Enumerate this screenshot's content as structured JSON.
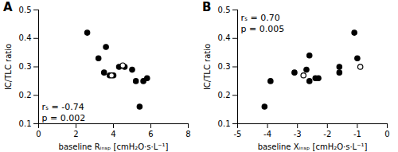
{
  "chart_data": [
    {
      "type": "scatter",
      "title": "A",
      "x_label": "baseline Rᵢₙₛₚ [cmH₂O·s·L⁻¹]",
      "y_label": "IC/TLC ratio",
      "xlim": [
        0,
        8
      ],
      "xticks": [
        0,
        2,
        4,
        6,
        8
      ],
      "ylim": [
        0.1,
        0.5
      ],
      "yticks": [
        0.1,
        0.2,
        0.3,
        0.4,
        0.5
      ],
      "series": [
        {
          "color": "#000000",
          "marker": "filled",
          "x": [
            2.6,
            3.2,
            3.5,
            3.6,
            3.8,
            4.0,
            4.3,
            4.6,
            5.0,
            5.2,
            5.4,
            5.6,
            5.8
          ],
          "values": [
            0.42,
            0.33,
            0.28,
            0.37,
            0.27,
            0.27,
            0.3,
            0.3,
            0.29,
            0.25,
            0.16,
            0.25,
            0.26
          ]
        },
        {
          "color": "#000000",
          "marker": "open",
          "x": [
            3.9,
            4.5
          ],
          "values": [
            0.27,
            0.305
          ]
        }
      ],
      "annotations": [
        "rₛ = -0.74",
        "p = 0.002"
      ]
    },
    {
      "type": "scatter",
      "title": "B",
      "x_label": "baseline Xᵢₙₛₚ [cmH₂O·s·L⁻¹]",
      "y_label": "IC/TLC ratio",
      "xlim": [
        -5,
        0
      ],
      "xticks": [
        -5,
        -4,
        -3,
        -2,
        -1,
        0
      ],
      "ylim": [
        0.1,
        0.5
      ],
      "yticks": [
        0.1,
        0.2,
        0.3,
        0.4,
        0.5
      ],
      "series": [
        {
          "color": "#000000",
          "marker": "filled",
          "x": [
            -4.1,
            -3.9,
            -3.1,
            -2.7,
            -2.6,
            -2.6,
            -2.4,
            -2.3,
            -1.6,
            -1.6,
            -1.1,
            -1.0
          ],
          "values": [
            0.16,
            0.25,
            0.28,
            0.29,
            0.34,
            0.25,
            0.26,
            0.26,
            0.3,
            0.28,
            0.42,
            0.33
          ]
        },
        {
          "color": "#000000",
          "marker": "open",
          "x": [
            -2.8,
            -0.9
          ],
          "values": [
            0.27,
            0.3
          ]
        }
      ],
      "annotations": [
        "rₛ = 0.70",
        "p = 0.005"
      ]
    }
  ]
}
